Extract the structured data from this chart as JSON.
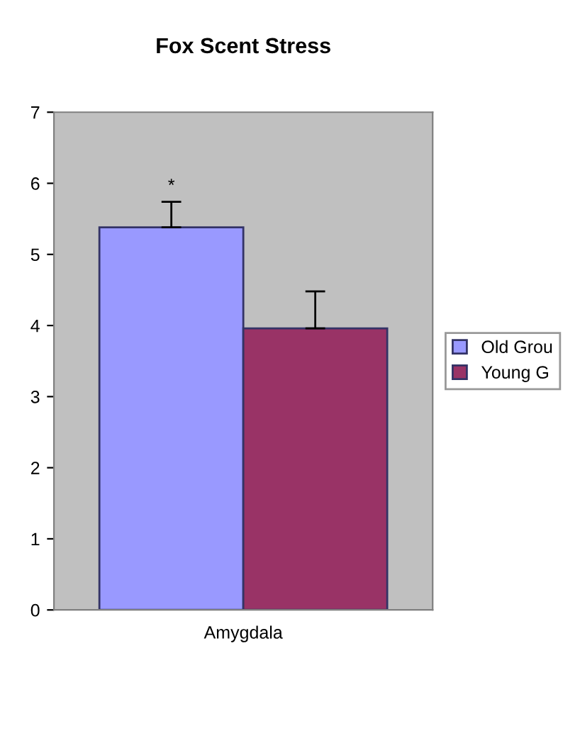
{
  "chart_data": {
    "type": "bar",
    "title": "Fox Scent Stress",
    "categories": [
      "Amygdala"
    ],
    "series": [
      {
        "name": "Old Grou",
        "color": "#9999ff",
        "values": [
          5.38
        ],
        "errors": [
          0.36
        ]
      },
      {
        "name": "Young G",
        "color": "#993366",
        "values": [
          3.96
        ],
        "errors": [
          0.52
        ]
      }
    ],
    "ylim": [
      0,
      7
    ],
    "yticks": [
      0,
      1,
      2,
      3,
      4,
      5,
      6,
      7
    ],
    "grid": false,
    "legend": "right",
    "annotations": [
      "*"
    ]
  }
}
